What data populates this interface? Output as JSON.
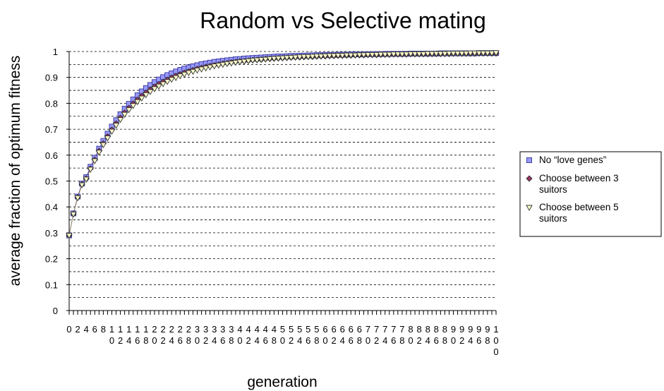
{
  "chart_data": {
    "type": "line",
    "title": "Random vs Selective mating",
    "xlabel": "generation",
    "ylabel": "average fraction of optimum fitness",
    "x": [
      0,
      1,
      2,
      3,
      4,
      5,
      6,
      7,
      8,
      9,
      10,
      11,
      12,
      13,
      14,
      15,
      16,
      17,
      18,
      19,
      20,
      21,
      22,
      23,
      24,
      25,
      26,
      27,
      28,
      29,
      30,
      31,
      32,
      33,
      34,
      35,
      36,
      37,
      38,
      39,
      40,
      41,
      42,
      43,
      44,
      45,
      46,
      47,
      48,
      49,
      50,
      51,
      52,
      53,
      54,
      55,
      56,
      57,
      58,
      59,
      60,
      61,
      62,
      63,
      64,
      65,
      66,
      67,
      68,
      69,
      70,
      71,
      72,
      73,
      74,
      75,
      76,
      77,
      78,
      79,
      80,
      81,
      82,
      83,
      84,
      85,
      86,
      87,
      88,
      89,
      90,
      91,
      92,
      93,
      94,
      95,
      96,
      97,
      98,
      99,
      100
    ],
    "xtick_labels": [
      "0",
      "2",
      "4",
      "6",
      "8",
      "10",
      "12",
      "14",
      "16",
      "18",
      "20",
      "22",
      "24",
      "26",
      "28",
      "30",
      "32",
      "34",
      "36",
      "38",
      "40",
      "42",
      "44",
      "46",
      "48",
      "50",
      "52",
      "54",
      "56",
      "58",
      "60",
      "62",
      "64",
      "66",
      "68",
      "70",
      "72",
      "74",
      "76",
      "78",
      "80",
      "82",
      "84",
      "86",
      "88",
      "90",
      "92",
      "94",
      "96",
      "98",
      "100"
    ],
    "xtick_values": [
      0,
      2,
      4,
      6,
      8,
      10,
      12,
      14,
      16,
      18,
      20,
      22,
      24,
      26,
      28,
      30,
      32,
      34,
      36,
      38,
      40,
      42,
      44,
      46,
      48,
      50,
      52,
      54,
      56,
      58,
      60,
      62,
      64,
      66,
      68,
      70,
      72,
      74,
      76,
      78,
      80,
      82,
      84,
      86,
      88,
      90,
      92,
      94,
      96,
      98,
      100
    ],
    "yticks": [
      0,
      0.1,
      0.2,
      0.3,
      0.4,
      0.5,
      0.6,
      0.7,
      0.8,
      0.9,
      1
    ],
    "ytick_labels": [
      "0",
      "0.1",
      "0.2",
      "0.3",
      "0.4",
      "0.5",
      "0.6",
      "0.7",
      "0.8",
      "0.9",
      "1"
    ],
    "ylim": [
      0,
      1
    ],
    "xlim": [
      0,
      100
    ],
    "grid": "horizontal-dashed-minor-0.05",
    "legend_position": "right",
    "series": [
      {
        "name": "No “love genes”",
        "marker": "square",
        "color": "#9999ff",
        "edge": "#333399",
        "values": [
          0.29,
          0.375,
          0.44,
          0.49,
          0.515,
          0.555,
          0.59,
          0.625,
          0.655,
          0.683,
          0.71,
          0.735,
          0.758,
          0.779,
          0.798,
          0.815,
          0.831,
          0.846,
          0.859,
          0.871,
          0.882,
          0.892,
          0.901,
          0.909,
          0.916,
          0.923,
          0.929,
          0.934,
          0.939,
          0.943,
          0.947,
          0.951,
          0.954,
          0.957,
          0.96,
          0.962,
          0.964,
          0.966,
          0.968,
          0.97,
          0.971,
          0.973,
          0.974,
          0.975,
          0.976,
          0.977,
          0.978,
          0.979,
          0.98,
          0.981,
          0.981,
          0.982,
          0.983,
          0.983,
          0.984,
          0.984,
          0.985,
          0.985,
          0.986,
          0.986,
          0.987,
          0.987,
          0.987,
          0.988,
          0.988,
          0.988,
          0.989,
          0.989,
          0.989,
          0.989,
          0.99,
          0.99,
          0.99,
          0.99,
          0.991,
          0.991,
          0.991,
          0.991,
          0.991,
          0.991,
          0.992,
          0.992,
          0.992,
          0.992,
          0.992,
          0.992,
          0.992,
          0.993,
          0.993,
          0.993,
          0.993,
          0.993,
          0.993,
          0.993,
          0.993,
          0.993,
          0.994,
          0.994,
          0.994,
          0.994,
          0.994
        ]
      },
      {
        "name": "Choose between 3 suitors",
        "marker": "diamond",
        "color": "#993366",
        "edge": "#333333",
        "values": [
          0.29,
          0.373,
          0.437,
          0.487,
          0.51,
          0.548,
          0.582,
          0.616,
          0.645,
          0.672,
          0.698,
          0.722,
          0.744,
          0.764,
          0.782,
          0.799,
          0.814,
          0.828,
          0.841,
          0.853,
          0.864,
          0.874,
          0.883,
          0.891,
          0.899,
          0.906,
          0.912,
          0.918,
          0.923,
          0.928,
          0.933,
          0.937,
          0.941,
          0.944,
          0.947,
          0.95,
          0.953,
          0.955,
          0.958,
          0.96,
          0.962,
          0.963,
          0.965,
          0.967,
          0.968,
          0.969,
          0.971,
          0.972,
          0.973,
          0.974,
          0.975,
          0.976,
          0.977,
          0.978,
          0.978,
          0.979,
          0.98,
          0.98,
          0.981,
          0.982,
          0.982,
          0.983,
          0.983,
          0.984,
          0.984,
          0.985,
          0.985,
          0.986,
          0.986,
          0.986,
          0.987,
          0.987,
          0.987,
          0.988,
          0.988,
          0.988,
          0.989,
          0.989,
          0.989,
          0.989,
          0.99,
          0.99,
          0.99,
          0.99,
          0.99,
          0.991,
          0.991,
          0.991,
          0.991,
          0.991,
          0.992,
          0.992,
          0.992,
          0.992,
          0.992,
          0.992,
          0.993,
          0.993,
          0.993,
          0.993,
          0.993
        ]
      },
      {
        "name": "Choose between 5 suitors",
        "marker": "triangle-down",
        "color": "#ffffcc",
        "edge": "#333333",
        "values": [
          0.29,
          0.372,
          0.435,
          0.485,
          0.507,
          0.545,
          0.578,
          0.611,
          0.64,
          0.666,
          0.692,
          0.715,
          0.737,
          0.757,
          0.775,
          0.791,
          0.806,
          0.82,
          0.833,
          0.845,
          0.856,
          0.866,
          0.875,
          0.884,
          0.892,
          0.899,
          0.906,
          0.912,
          0.918,
          0.923,
          0.928,
          0.932,
          0.936,
          0.94,
          0.944,
          0.947,
          0.95,
          0.953,
          0.955,
          0.958,
          0.96,
          0.962,
          0.964,
          0.966,
          0.967,
          0.969,
          0.97,
          0.972,
          0.973,
          0.974,
          0.975,
          0.976,
          0.977,
          0.978,
          0.979,
          0.98,
          0.98,
          0.981,
          0.982,
          0.982,
          0.983,
          0.984,
          0.984,
          0.985,
          0.985,
          0.986,
          0.986,
          0.986,
          0.987,
          0.987,
          0.988,
          0.988,
          0.988,
          0.989,
          0.989,
          0.989,
          0.99,
          0.99,
          0.99,
          0.99,
          0.991,
          0.991,
          0.991,
          0.991,
          0.992,
          0.992,
          0.992,
          0.992,
          0.992,
          0.993,
          0.993,
          0.993,
          0.993,
          0.993,
          0.994,
          0.994,
          0.994,
          0.994,
          0.994,
          0.994,
          0.995
        ]
      }
    ]
  },
  "legend": {
    "items": [
      {
        "lines": [
          "No “love genes”"
        ]
      },
      {
        "lines": [
          "Choose between 3",
          "suitors"
        ]
      },
      {
        "lines": [
          "Choose between 5",
          "suitors"
        ]
      }
    ]
  }
}
